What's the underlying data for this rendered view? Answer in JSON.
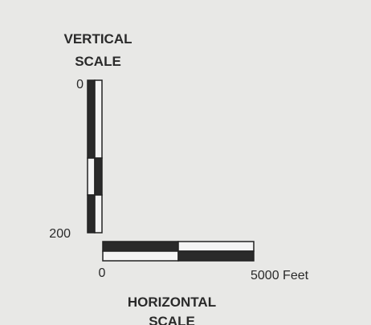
{
  "vertical_scale": {
    "title_lines": [
      "VERTICAL",
      "SCALE"
    ],
    "labels": [
      "0",
      "200"
    ]
  },
  "horizontal_scale": {
    "title_lines": [
      "HORIZONTAL",
      "SCALE"
    ],
    "labels": [
      "0",
      "5000 Feet"
    ]
  }
}
